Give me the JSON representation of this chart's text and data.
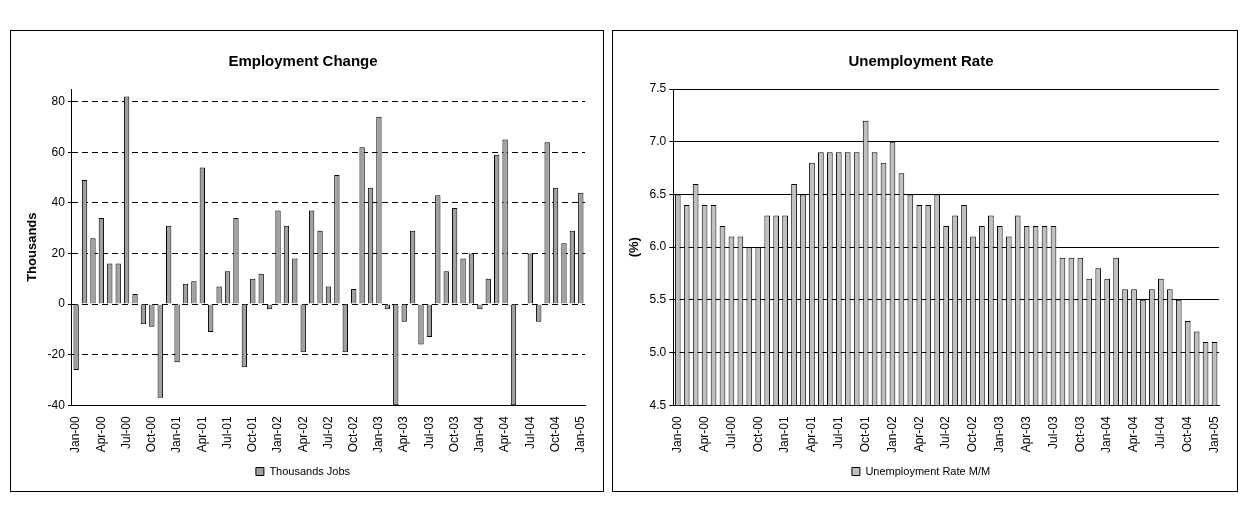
{
  "chart_data": [
    {
      "type": "bar",
      "title": "Employment Change",
      "ylabel": "Thousands",
      "categories": [
        "Jan-00",
        null,
        null,
        "Apr-00",
        null,
        null,
        "Jul-00",
        null,
        null,
        "Oct-00",
        null,
        null,
        "Jan-01",
        null,
        null,
        "Apr-01",
        null,
        null,
        "Jul-01",
        null,
        null,
        "Oct-01",
        null,
        null,
        "Jan-02",
        null,
        null,
        "Apr-02",
        null,
        null,
        "Jul-02",
        null,
        null,
        "Oct-02",
        null,
        null,
        "Jan-03",
        null,
        null,
        "Apr-03",
        null,
        null,
        "Jul-03",
        null,
        null,
        "Oct-03",
        null,
        null,
        "Jan-04",
        null,
        null,
        "Apr-04",
        null,
        null,
        "Jul-04",
        null,
        null,
        "Oct-04",
        null,
        null,
        "Jan-05"
      ],
      "series": [
        {
          "name": "Thousands Jobs",
          "color": "#a0a0a0",
          "values": [
            -26,
            49,
            26,
            34,
            16,
            16,
            82,
            4,
            -8,
            -9,
            -37,
            31,
            -23,
            8,
            9,
            54,
            -11,
            7,
            13,
            34,
            -25,
            10,
            12,
            -2,
            37,
            31,
            18,
            -19,
            37,
            29,
            7,
            51,
            -19,
            6,
            62,
            46,
            74,
            -2,
            -40,
            -7,
            29,
            -16,
            -13,
            43,
            13,
            38,
            18,
            20,
            -2,
            10,
            59,
            65,
            -40,
            null,
            20,
            -7,
            64,
            46,
            24,
            29,
            44
          ]
        }
      ],
      "ylim": [
        -40,
        85
      ],
      "yticks": [
        -40,
        -20,
        0,
        20,
        40,
        60,
        80
      ],
      "grid": "y",
      "legend": "bottom"
    },
    {
      "type": "bar",
      "title": "Unemployment Rate",
      "ylabel": "(%)",
      "categories": [
        "Jan-00",
        null,
        null,
        "Apr-00",
        null,
        null,
        "Jul-00",
        null,
        null,
        "Oct-00",
        null,
        null,
        "Jan-01",
        null,
        null,
        "Apr-01",
        null,
        null,
        "Jul-01",
        null,
        null,
        "Oct-01",
        null,
        null,
        "Jan-02",
        null,
        null,
        "Apr-02",
        null,
        null,
        "Jul-02",
        null,
        null,
        "Oct-02",
        null,
        null,
        "Jan-03",
        null,
        null,
        "Apr-03",
        null,
        null,
        "Jul-03",
        null,
        null,
        "Oct-03",
        null,
        null,
        "Jan-04",
        null,
        null,
        "Apr-04",
        null,
        null,
        "Jul-04",
        null,
        null,
        "Oct-04",
        null,
        null,
        "Jan-05"
      ],
      "series": [
        {
          "name": "Unemployment Rate M/M",
          "color": "#c0c0c0",
          "values": [
            6.5,
            6.4,
            6.6,
            6.4,
            6.4,
            6.2,
            6.1,
            6.1,
            6.0,
            6.0,
            6.3,
            6.3,
            6.3,
            6.6,
            6.5,
            6.8,
            6.9,
            6.9,
            6.9,
            6.9,
            6.9,
            7.2,
            6.9,
            6.8,
            7.0,
            6.7,
            6.5,
            6.4,
            6.4,
            6.5,
            6.2,
            6.3,
            6.4,
            6.1,
            6.2,
            6.3,
            6.2,
            6.1,
            6.3,
            6.2,
            6.2,
            6.2,
            6.2,
            5.9,
            5.9,
            5.9,
            5.7,
            5.8,
            5.7,
            5.9,
            5.6,
            5.6,
            5.5,
            5.6,
            5.7,
            5.6,
            5.5,
            5.3,
            5.2,
            5.1,
            5.1
          ]
        }
      ],
      "ylim": [
        4.5,
        7.5
      ],
      "yticks": [
        4.5,
        {
          "value": 5,
          "label": "5.0"
        },
        5.5,
        {
          "value": 6,
          "label": "6.0"
        },
        6.5,
        {
          "value": 7,
          "label": "7.0"
        },
        7.5
      ],
      "grid": "y",
      "legend": "bottom"
    }
  ]
}
